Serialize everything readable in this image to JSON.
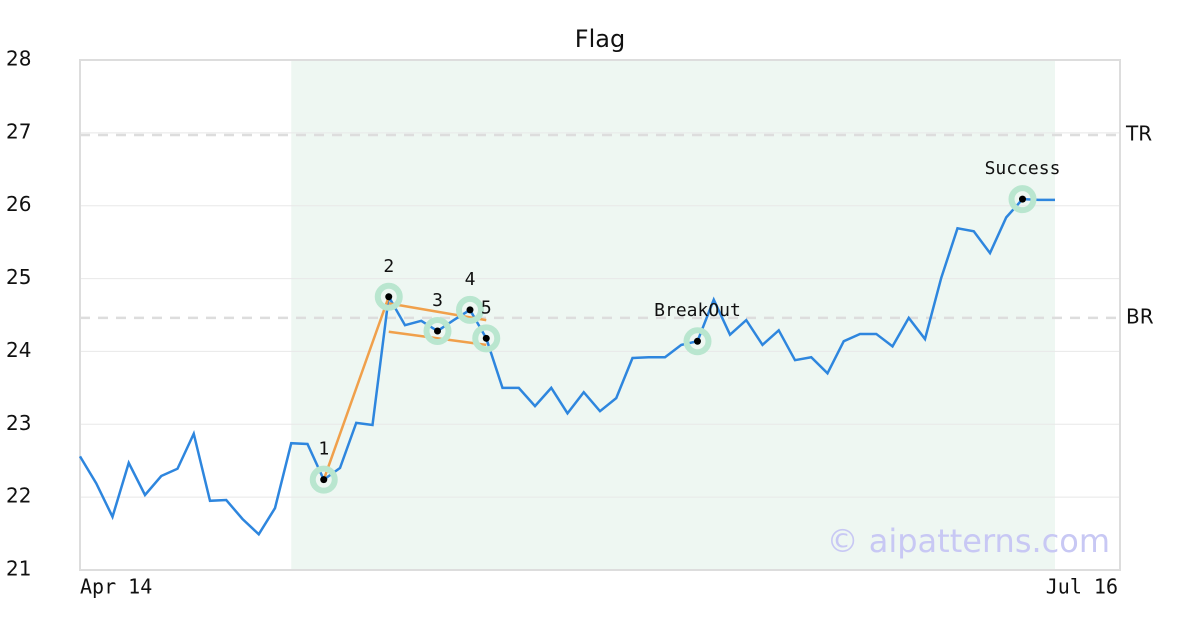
{
  "chart_data": {
    "type": "line",
    "title": "Flag",
    "categories": [
      "Apr 14",
      null,
      null,
      null,
      null,
      null,
      null,
      null,
      null,
      null,
      null,
      null,
      null,
      null,
      null,
      null,
      null,
      null,
      null,
      null,
      null,
      null,
      null,
      null,
      null,
      null,
      null,
      null,
      null,
      null,
      null,
      null,
      null,
      null,
      null,
      null,
      null,
      null,
      null,
      null,
      null,
      null,
      null,
      null,
      null,
      null,
      null,
      null,
      null,
      null,
      null,
      null,
      null,
      null,
      null,
      null,
      null,
      null,
      null,
      null,
      "Jul 16"
    ],
    "series": [
      {
        "color": "#2e86de",
        "values": [
          22.56,
          22.19,
          21.73,
          22.47,
          22.03,
          22.29,
          22.39,
          22.87,
          21.95,
          21.96,
          21.7,
          21.49,
          21.85,
          22.74,
          22.73,
          22.24,
          22.4,
          23.02,
          22.99,
          24.75,
          24.36,
          24.42,
          24.28,
          24.43,
          24.57,
          24.18,
          23.5,
          23.5,
          23.25,
          23.5,
          23.15,
          23.44,
          23.18,
          23.36,
          23.91,
          23.92,
          23.92,
          24.09,
          24.14,
          24.71,
          24.23,
          24.43,
          24.09,
          24.29,
          23.88,
          23.92,
          23.7,
          24.14,
          24.24,
          24.24,
          24.07,
          24.46,
          24.17,
          25.01,
          25.69,
          25.65,
          25.35,
          25.84,
          26.09,
          26.08,
          26.08
        ]
      }
    ],
    "ylim": [
      21,
      28
    ],
    "yticks": [
      21,
      22,
      23,
      24,
      25,
      26,
      27,
      28
    ],
    "grid": true,
    "highlight_range": [
      13,
      60
    ],
    "reference_lines": [
      {
        "label": "TR",
        "value": 26.97
      },
      {
        "label": "BR",
        "value": 24.46
      }
    ],
    "trend_lines": [
      {
        "x": [
          15,
          19
        ],
        "y": [
          22.24,
          24.75
        ],
        "color": "#f0a04b"
      },
      {
        "x": [
          19,
          25
        ],
        "y": [
          24.66,
          24.43
        ],
        "color": "#f0a04b"
      },
      {
        "x": [
          19,
          25
        ],
        "y": [
          24.27,
          24.09
        ],
        "color": "#f0a04b"
      }
    ],
    "annotations": [
      {
        "label": "1",
        "x": 15
      },
      {
        "label": "2",
        "x": 19
      },
      {
        "label": "3",
        "x": 22
      },
      {
        "label": "4",
        "x": 24
      },
      {
        "label": "5",
        "x": 25
      },
      {
        "label": "BreakOut",
        "x": 38
      },
      {
        "label": "Success",
        "x": 58
      }
    ],
    "watermark": "© aipatterns.com"
  }
}
